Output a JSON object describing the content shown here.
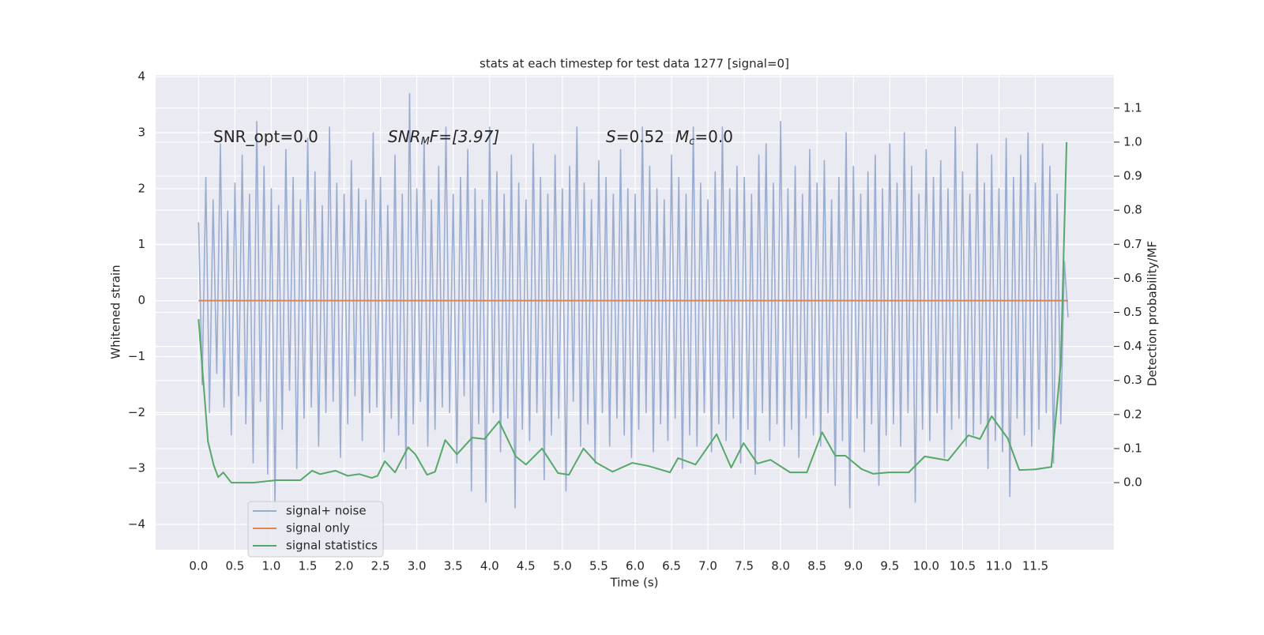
{
  "chart_data": {
    "type": "line",
    "title": "stats at each timestep for test data 1277 [signal=0]",
    "x_label": "Time (s)",
    "y_label": "Whitened strain",
    "y2_label": "Detection probability/MF",
    "annotations": [
      {
        "parts": [
          "SNR_opt=0.0"
        ]
      },
      {
        "parts": [
          "SNR",
          "M",
          "F=[3.97]"
        ]
      },
      {
        "parts": [
          "S",
          "=0.52",
          "M",
          "c",
          "=0.0"
        ]
      }
    ],
    "grid": true,
    "legend": "lower left",
    "xlim": [
      -0.59,
      12.58
    ],
    "ylim": [
      -4.45,
      4.03
    ],
    "y2lim": [
      -0.197,
      1.197
    ],
    "xticks": [
      {
        "value": 0,
        "label": "0.0"
      },
      {
        "value": 0.5,
        "label": "0.5"
      },
      {
        "value": 1,
        "label": "1.0"
      },
      {
        "value": 1.5,
        "label": "1.5"
      },
      {
        "value": 2,
        "label": "2.0"
      },
      {
        "value": 2.5,
        "label": "2.5"
      },
      {
        "value": 3,
        "label": "3.0"
      },
      {
        "value": 3.5,
        "label": "3.5"
      },
      {
        "value": 4,
        "label": "4.0"
      },
      {
        "value": 4.5,
        "label": "4.5"
      },
      {
        "value": 5,
        "label": "5.0"
      },
      {
        "value": 5.5,
        "label": "5.5"
      },
      {
        "value": 6,
        "label": "6.0"
      },
      {
        "value": 6.5,
        "label": "6.5"
      },
      {
        "value": 7,
        "label": "7.0"
      },
      {
        "value": 7.5,
        "label": "7.5"
      },
      {
        "value": 8,
        "label": "8.0"
      },
      {
        "value": 8.5,
        "label": "8.5"
      },
      {
        "value": 9,
        "label": "9.0"
      },
      {
        "value": 9.5,
        "label": "9.5"
      },
      {
        "value": 10,
        "label": "10.0"
      },
      {
        "value": 10.5,
        "label": "10.5"
      },
      {
        "value": 11,
        "label": "11.0"
      },
      {
        "value": 11.5,
        "label": "11.5"
      }
    ],
    "yticks": [
      {
        "value": -4,
        "label": "−4"
      },
      {
        "value": -3,
        "label": "−3"
      },
      {
        "value": -2,
        "label": "−2"
      },
      {
        "value": -1,
        "label": "−1"
      },
      0,
      1,
      2,
      3,
      4
    ],
    "y2ticks": [
      {
        "value": 0,
        "label": "0.0"
      },
      {
        "value": 0.1,
        "label": "0.1"
      },
      {
        "value": 0.2,
        "label": "0.2"
      },
      {
        "value": 0.3,
        "label": "0.3"
      },
      {
        "value": 0.4,
        "label": "0.4"
      },
      {
        "value": 0.5,
        "label": "0.5"
      },
      {
        "value": 0.6,
        "label": "0.6"
      },
      {
        "value": 0.7,
        "label": "0.7"
      },
      {
        "value": 0.8,
        "label": "0.8"
      },
      {
        "value": 0.9,
        "label": "0.9"
      },
      {
        "value": 1,
        "label": "1.0"
      },
      {
        "value": 1.1,
        "label": "1.1"
      }
    ],
    "series": [
      {
        "name": "signal+ noise",
        "color": "#9aadd1",
        "x": [
          0,
          0.05,
          0.1,
          0.15,
          0.2,
          0.25,
          0.3,
          0.35,
          0.4,
          0.45,
          0.5,
          0.55,
          0.6,
          0.65,
          0.7,
          0.75,
          0.8,
          0.85,
          0.9,
          0.95,
          1,
          1.05,
          1.1,
          1.15,
          1.2,
          1.25,
          1.3,
          1.35,
          1.4,
          1.45,
          1.5,
          1.55,
          1.6,
          1.65,
          1.7,
          1.75,
          1.8,
          1.85,
          1.9,
          1.95,
          2,
          2.05,
          2.1,
          2.15,
          2.2,
          2.25,
          2.3,
          2.35,
          2.4,
          2.45,
          2.5,
          2.55,
          2.6,
          2.65,
          2.7,
          2.75,
          2.8,
          2.85,
          2.9,
          2.95,
          3,
          3.05,
          3.1,
          3.15,
          3.2,
          3.25,
          3.3,
          3.35,
          3.4,
          3.45,
          3.5,
          3.55,
          3.6,
          3.65,
          3.7,
          3.75,
          3.8,
          3.85,
          3.9,
          3.95,
          4,
          4.05,
          4.1,
          4.15,
          4.2,
          4.25,
          4.3,
          4.35,
          4.4,
          4.45,
          4.5,
          4.55,
          4.6,
          4.65,
          4.7,
          4.75,
          4.8,
          4.85,
          4.9,
          4.95,
          5,
          5.05,
          5.1,
          5.15,
          5.2,
          5.25,
          5.3,
          5.35,
          5.4,
          5.45,
          5.5,
          5.55,
          5.6,
          5.65,
          5.7,
          5.75,
          5.8,
          5.85,
          5.9,
          5.95,
          6,
          6.05,
          6.1,
          6.15,
          6.2,
          6.25,
          6.3,
          6.35,
          6.4,
          6.45,
          6.5,
          6.55,
          6.6,
          6.65,
          6.7,
          6.75,
          6.8,
          6.85,
          6.9,
          6.95,
          7,
          7.05,
          7.1,
          7.15,
          7.2,
          7.25,
          7.3,
          7.35,
          7.4,
          7.45,
          7.5,
          7.55,
          7.6,
          7.65,
          7.7,
          7.75,
          7.8,
          7.85,
          7.9,
          7.95,
          8,
          8.05,
          8.1,
          8.15,
          8.2,
          8.25,
          8.3,
          8.35,
          8.4,
          8.45,
          8.5,
          8.55,
          8.6,
          8.65,
          8.7,
          8.75,
          8.8,
          8.85,
          8.9,
          8.95,
          9,
          9.05,
          9.1,
          9.15,
          9.2,
          9.25,
          9.3,
          9.35,
          9.4,
          9.45,
          9.5,
          9.55,
          9.6,
          9.65,
          9.7,
          9.75,
          9.8,
          9.85,
          9.9,
          9.95,
          10,
          10.05,
          10.1,
          10.15,
          10.2,
          10.25,
          10.3,
          10.35,
          10.4,
          10.45,
          10.5,
          10.55,
          10.6,
          10.65,
          10.7,
          10.75,
          10.8,
          10.85,
          10.9,
          10.95,
          11,
          11.05,
          11.1,
          11.15,
          11.2,
          11.25,
          11.3,
          11.35,
          11.4,
          11.45,
          11.5,
          11.55,
          11.6,
          11.65,
          11.7,
          11.75,
          11.8,
          11.85,
          11.9,
          11.95
        ],
        "values": [
          1.4,
          -1.5,
          2.2,
          -2.0,
          1.8,
          -1.3,
          2.8,
          -1.9,
          1.6,
          -2.4,
          2.1,
          -1.7,
          2.6,
          -2.2,
          1.9,
          -2.9,
          3.2,
          -1.8,
          2.4,
          -3.1,
          2.0,
          -3.6,
          1.7,
          -2.3,
          2.7,
          -1.6,
          2.2,
          -3.0,
          1.8,
          -2.1,
          2.9,
          -1.9,
          2.3,
          -2.6,
          1.7,
          -2.0,
          3.1,
          -1.8,
          2.1,
          -2.8,
          1.9,
          -2.2,
          2.5,
          -1.7,
          2.0,
          -2.5,
          1.8,
          -2.0,
          3.0,
          -1.9,
          2.2,
          -2.7,
          1.7,
          -2.1,
          2.6,
          -2.4,
          1.9,
          -3.0,
          3.7,
          -2.2,
          2.0,
          -1.8,
          2.9,
          -2.6,
          1.8,
          -2.3,
          2.4,
          -1.9,
          3.1,
          -2.0,
          1.9,
          -2.9,
          2.2,
          -1.7,
          2.7,
          -3.4,
          2.0,
          -2.2,
          1.8,
          -3.6,
          3.1,
          -2.0,
          2.3,
          -2.7,
          1.9,
          -2.1,
          2.6,
          -3.7,
          2.1,
          -2.3,
          1.8,
          -2.5,
          2.8,
          -2.0,
          2.2,
          -3.2,
          1.9,
          -2.4,
          2.6,
          -2.1,
          2.0,
          -3.4,
          2.4,
          -1.8,
          3.1,
          -2.6,
          2.1,
          -2.2,
          1.8,
          -2.9,
          2.5,
          -2.0,
          2.2,
          -2.6,
          1.9,
          -2.1,
          2.7,
          -2.4,
          2.0,
          -2.8,
          1.9,
          -2.3,
          3.1,
          -2.0,
          2.4,
          -2.7,
          2.0,
          -2.2,
          1.8,
          -2.5,
          2.6,
          -2.1,
          2.2,
          -3.0,
          1.9,
          -2.4,
          3.1,
          -2.6,
          2.1,
          -2.0,
          1.8,
          -2.7,
          2.3,
          -2.2,
          3.1,
          -2.5,
          2.0,
          -2.1,
          2.4,
          -2.9,
          2.2,
          -2.3,
          1.9,
          -3.1,
          2.6,
          -2.0,
          2.8,
          -2.5,
          2.1,
          -2.2,
          3.2,
          -2.6,
          2.0,
          -2.3,
          2.4,
          -2.8,
          1.9,
          -2.1,
          2.7,
          -2.4,
          2.1,
          -2.6,
          2.5,
          -2.0,
          1.8,
          -3.3,
          2.2,
          -2.5,
          3.0,
          -3.7,
          2.4,
          -2.1,
          1.9,
          -2.7,
          2.3,
          -2.2,
          2.6,
          -3.3,
          2.0,
          -2.4,
          2.8,
          -2.2,
          2.1,
          -2.6,
          3.0,
          -2.0,
          2.4,
          -3.6,
          1.9,
          -2.3,
          2.7,
          -2.5,
          2.2,
          -2.0,
          2.5,
          -2.8,
          2.0,
          -2.3,
          3.1,
          -2.1,
          2.3,
          -2.6,
          1.9,
          -2.4,
          2.8,
          -2.2,
          2.1,
          -3.0,
          2.6,
          -2.5,
          2.0,
          -2.7,
          2.9,
          -3.5,
          2.2,
          -2.1,
          2.6,
          -2.4,
          3.0,
          -2.6,
          2.1,
          -2.3,
          2.8,
          -2.0,
          2.4,
          -2.9,
          1.9,
          -2.2,
          0.7,
          -0.3
        ]
      },
      {
        "name": "signal only",
        "color": "#dd8452",
        "x": [
          0,
          11.95
        ],
        "values": [
          0,
          0
        ]
      },
      {
        "name": "signal statistics",
        "color": "#55a868",
        "axis": "y2",
        "x": [
          0,
          0.13,
          0.21,
          0.27,
          0.34,
          0.45,
          0.75,
          1.07,
          1.4,
          1.56,
          1.67,
          1.88,
          2.05,
          2.21,
          2.38,
          2.46,
          2.56,
          2.7,
          2.88,
          2.98,
          3.14,
          3.25,
          3.39,
          3.55,
          3.76,
          3.93,
          4.13,
          4.36,
          4.5,
          4.72,
          4.94,
          5.09,
          5.29,
          5.47,
          5.69,
          5.96,
          6.18,
          6.48,
          6.59,
          6.83,
          7.12,
          7.32,
          7.49,
          7.68,
          7.86,
          8.13,
          8.36,
          8.57,
          8.75,
          8.89,
          9.11,
          9.27,
          9.49,
          9.76,
          9.98,
          10.3,
          10.58,
          10.74,
          10.9,
          11.12,
          11.28,
          11.5,
          11.72,
          11.85,
          11.93
        ],
        "values": [
          0.48,
          0.12,
          0.05,
          0.016,
          0.03,
          0.0,
          0.0,
          0.007,
          0.007,
          0.035,
          0.025,
          0.035,
          0.02,
          0.025,
          0.014,
          0.02,
          0.063,
          0.03,
          0.104,
          0.083,
          0.023,
          0.032,
          0.125,
          0.083,
          0.132,
          0.128,
          0.18,
          0.077,
          0.053,
          0.1,
          0.028,
          0.023,
          0.1,
          0.058,
          0.032,
          0.058,
          0.049,
          0.03,
          0.072,
          0.053,
          0.142,
          0.044,
          0.116,
          0.056,
          0.067,
          0.03,
          0.03,
          0.148,
          0.079,
          0.079,
          0.04,
          0.026,
          0.03,
          0.03,
          0.077,
          0.065,
          0.139,
          0.128,
          0.195,
          0.13,
          0.037,
          0.039,
          0.046,
          0.35,
          1.0
        ]
      }
    ]
  }
}
